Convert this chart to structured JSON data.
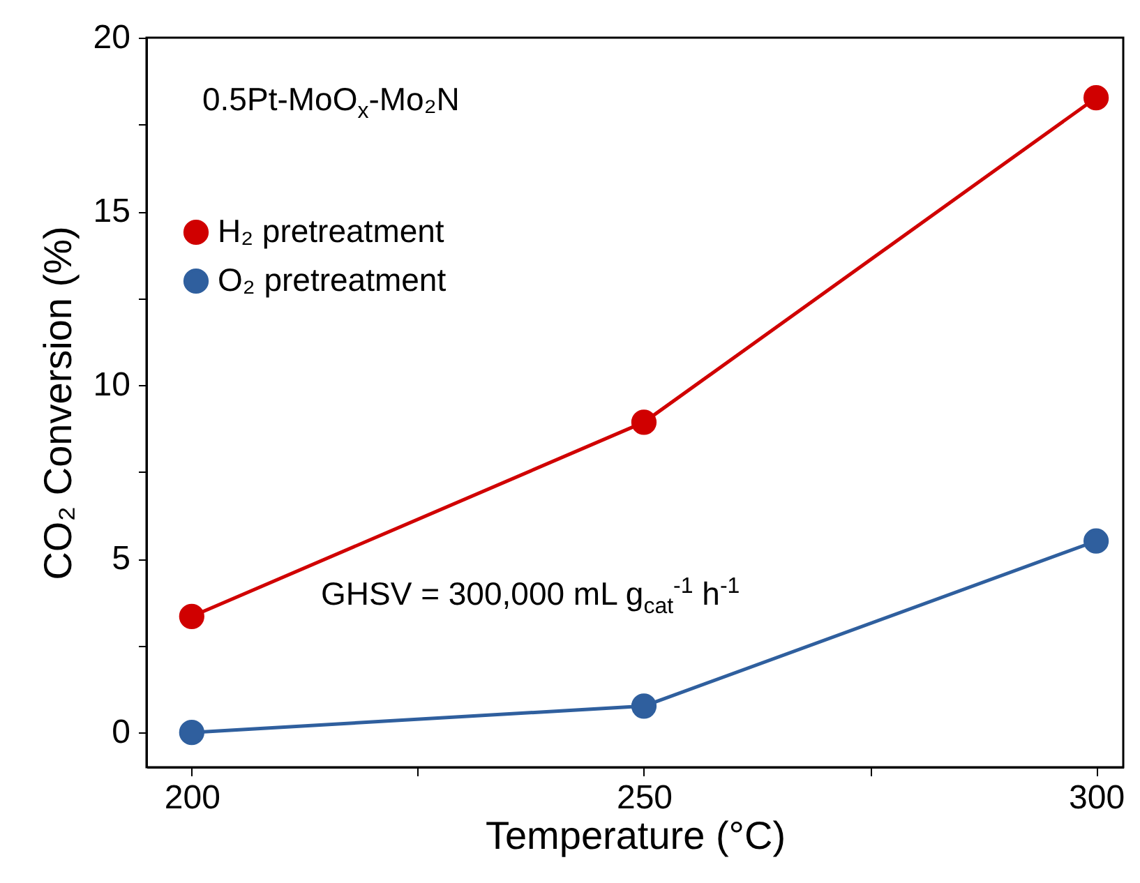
{
  "chart_data": {
    "type": "line",
    "xlabel": "Temperature (°C)",
    "ylabel": "CO₂ Conversion (%)",
    "x": [
      200,
      250,
      300
    ],
    "series": [
      {
        "name": "H₂ pretreatment",
        "color": "#d00000",
        "values": [
          3.34,
          8.93,
          18.27
        ]
      },
      {
        "name": "O₂ pretreatment",
        "color": "#2f5f9e",
        "values": [
          0,
          0.76,
          5.51
        ]
      }
    ],
    "xlim": [
      195,
      303
    ],
    "xticks": [
      200,
      {
        "value": 225,
        "label": null
      },
      250,
      {
        "value": 275,
        "label": null
      },
      300
    ],
    "ylim": [
      -1,
      20
    ],
    "yticks": [
      0,
      {
        "value": 2.5,
        "label": null
      },
      5,
      {
        "value": 7.5,
        "label": null
      },
      10,
      {
        "value": 12.5,
        "label": null
      },
      15,
      {
        "value": 17.5,
        "label": null
      },
      20
    ],
    "grid": false,
    "legend": "top left",
    "marker": "circle",
    "line_style": "solid",
    "annotations": [
      "0.5Pt-MoO$_{x}$-Mo₂N",
      "GHSV = 300,000 mL g$_{cat}$$^{-1}$ h$^{-1}$"
    ]
  }
}
